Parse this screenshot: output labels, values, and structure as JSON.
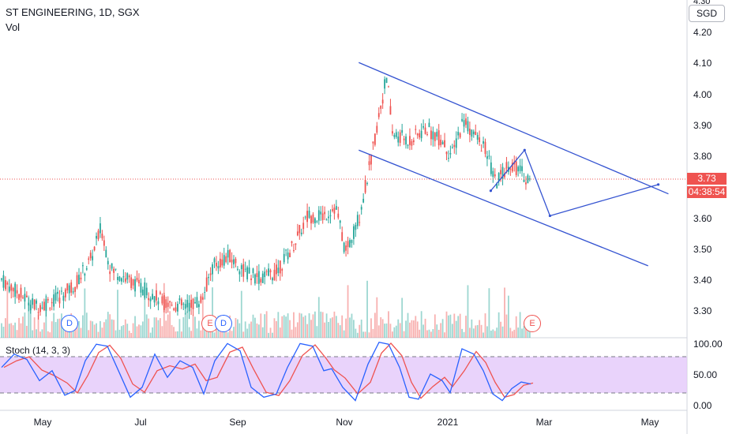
{
  "header": {
    "title": "ST ENGINEERING, 1D, SGX",
    "volume_label": "Vol",
    "currency": "SGD",
    "stoch_label": "Stoch (14, 3, 3)"
  },
  "price_axis": {
    "top_partial": "4.30",
    "ticks": [
      "4.20",
      "4.10",
      "4.00",
      "3.90",
      "3.80",
      "3.60",
      "3.50",
      "3.40",
      "3.30"
    ]
  },
  "stoch_axis": {
    "ticks": [
      "100.00",
      "50.00",
      "0.00"
    ]
  },
  "time_axis": {
    "labels": [
      "May",
      "Jul",
      "Sep",
      "Nov",
      "2021",
      "Mar",
      "May"
    ]
  },
  "last_price": {
    "price": "3.73",
    "countdown": "04:38:54"
  },
  "events": [
    {
      "letter": "D",
      "kind": "dividend"
    },
    {
      "letter": "E",
      "kind": "earnings"
    },
    {
      "letter": "D",
      "kind": "dividend"
    },
    {
      "letter": "E",
      "kind": "earnings"
    }
  ],
  "colors": {
    "up": "#26a69a",
    "down": "#ef5350",
    "drawing": "#3554d1",
    "k_line": "#2962ff",
    "d_line": "#ef5350",
    "stoch_band": "#e1c4fa"
  },
  "chart_data": {
    "type": "candlestick",
    "title": "ST ENGINEERING, 1D, SGX",
    "ylim": [
      3.23,
      4.31
    ],
    "x_range": [
      "2020-04-20",
      "2021-05-31"
    ],
    "last_close": 3.73,
    "trend_channel": {
      "upper": [
        {
          "date": "2020-11-18",
          "price": 4.11
        },
        {
          "date": "2021-05-20",
          "price": 3.69
        }
      ],
      "lower": [
        {
          "date": "2020-11-18",
          "price": 3.83
        },
        {
          "date": "2021-05-08",
          "price": 3.46
        }
      ]
    },
    "projection_path": [
      {
        "date": "2021-02-04",
        "price": 3.7
      },
      {
        "date": "2021-02-24",
        "price": 3.83
      },
      {
        "date": "2021-03-11",
        "price": 3.62
      },
      {
        "date": "2021-05-14",
        "price": 3.72
      }
    ],
    "stochastic": {
      "k_period": 14,
      "k_smooth": 3,
      "d_smooth": 3,
      "upper_band": 80,
      "lower_band": 20,
      "ylim": [
        0,
        100
      ]
    }
  }
}
